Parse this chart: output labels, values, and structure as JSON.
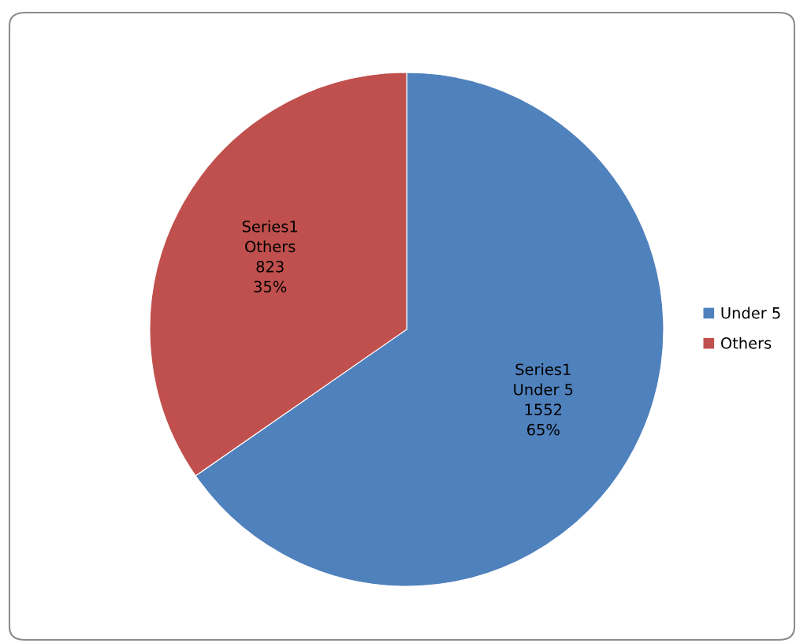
{
  "chart_data": {
    "type": "pie",
    "categories": [
      "Under 5",
      "Others"
    ],
    "series": [
      {
        "name": "Series1",
        "values": [
          1552,
          823
        ],
        "colors": [
          "#4f81bd",
          "#c0504d"
        ],
        "value_labels": [
          "1552\n65%",
          "823\n35%"
        ]
      }
    ],
    "legend": "right"
  }
}
